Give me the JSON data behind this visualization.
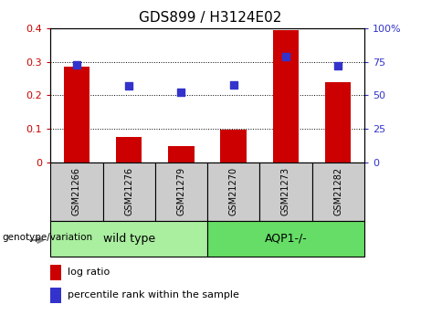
{
  "title": "GDS899 / H3124E02",
  "samples": [
    "GSM21266",
    "GSM21276",
    "GSM21279",
    "GSM21270",
    "GSM21273",
    "GSM21282"
  ],
  "log_ratio": [
    0.285,
    0.075,
    0.048,
    0.097,
    0.395,
    0.24
  ],
  "percentile_rank": [
    73,
    57,
    52,
    58,
    79,
    72
  ],
  "bar_color": "#cc0000",
  "dot_color": "#3333cc",
  "left_ylim": [
    0,
    0.4
  ],
  "right_ylim": [
    0,
    100
  ],
  "left_yticks": [
    0,
    0.1,
    0.2,
    0.3,
    0.4
  ],
  "right_yticks": [
    0,
    25,
    50,
    75,
    100
  ],
  "left_yticklabels": [
    "0",
    "0.1",
    "0.2",
    "0.3",
    "0.4"
  ],
  "right_yticklabels": [
    "0",
    "25",
    "50",
    "75",
    "100%"
  ],
  "groups": [
    {
      "label": "wild type",
      "color": "#aaeea0",
      "start": 0,
      "end": 3
    },
    {
      "label": "AQP1-/-",
      "color": "#66dd66",
      "start": 3,
      "end": 6
    }
  ],
  "genotype_label": "genotype/variation",
  "legend_items": [
    {
      "label": "log ratio",
      "color": "#cc0000"
    },
    {
      "label": "percentile rank within the sample",
      "color": "#3333cc"
    }
  ],
  "bar_width": 0.5,
  "dot_size": 40,
  "title_fontsize": 11,
  "axis_fontsize": 8,
  "label_fontsize": 7,
  "group_fontsize": 9
}
